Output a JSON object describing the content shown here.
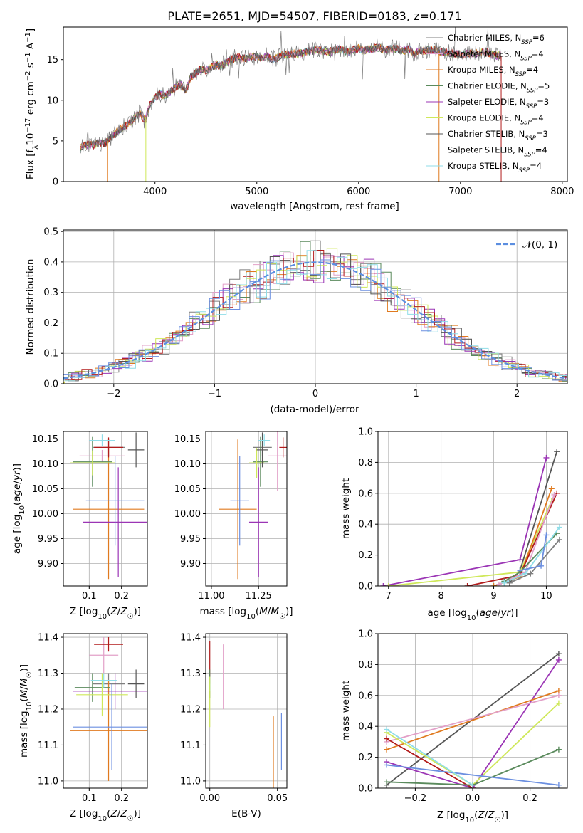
{
  "colors": {
    "Chabrier MILES": "#7f7f7f",
    "Salpeter MILES": "#e2a0c8",
    "Kroupa MILES": "#e07a1f",
    "Chabrier ELODIE": "#5a8a5c",
    "Salpeter ELODIE": "#9b35b5",
    "Kroupa ELODIE": "#cfe85a",
    "Chabrier STELIB": "#555555",
    "Salpeter STELIB": "#b21c1c",
    "Kroupa STELIB": "#8fdde8",
    "normal": "#5b8ee0",
    "blue_model": "#6b8fe0"
  },
  "chart_data": [
    {
      "type": "line",
      "title": "PLATE=2651, MJD=54507, FIBERID=0183, z=0.171",
      "xlabel": "wavelength [Angstrom, rest frame]",
      "ylabel": "Flux [f_λ10^-17 erg cm^-2 s^-1 A^-1]",
      "xlim": [
        3100,
        8050
      ],
      "ylim": [
        0,
        19
      ],
      "xticks": [
        "4000",
        "5000",
        "6000",
        "7000",
        "8000"
      ],
      "yticks": [
        "0",
        "5",
        "10",
        "15"
      ],
      "grid": false,
      "legend_position": "top-right",
      "series": [
        {
          "name": "Chabrier MILES",
          "nssp": "6"
        },
        {
          "name": "Salpeter MILES",
          "nssp": "4"
        },
        {
          "name": "Kroupa MILES",
          "nssp": "4"
        },
        {
          "name": "Chabrier ELODIE",
          "nssp": "5"
        },
        {
          "name": "Salpeter ELODIE",
          "nssp": "3"
        },
        {
          "name": "Kroupa ELODIE",
          "nssp": "4"
        },
        {
          "name": "Chabrier STELIB",
          "nssp": "3"
        },
        {
          "name": "Salpeter STELIB",
          "nssp": "4"
        },
        {
          "name": "Kroupa STELIB",
          "nssp": "4"
        }
      ],
      "spectrum_x": [
        3270,
        3300,
        3350,
        3400,
        3450,
        3500,
        3550,
        3600,
        3650,
        3700,
        3750,
        3800,
        3850,
        3900,
        3950,
        4000,
        4050,
        4100,
        4150,
        4200,
        4250,
        4300,
        4350,
        4400,
        4450,
        4500,
        4550,
        4600,
        4650,
        4700,
        4750,
        4800,
        4850,
        4900,
        4950,
        5000,
        5050,
        5100,
        5150,
        5200,
        5250,
        5300,
        5350,
        5400,
        5450,
        5500,
        5550,
        5600,
        5650,
        5700,
        5750,
        5800,
        5850,
        5900,
        5950,
        6000,
        6050,
        6100,
        6150,
        6200,
        6250,
        6300,
        6350,
        6400,
        6450,
        6500,
        6550,
        6600,
        6650,
        6700,
        6750,
        6800,
        6850,
        6900,
        6950,
        7000,
        7050,
        7100,
        7150,
        7200,
        7250,
        7300,
        7350,
        7400
      ],
      "spectrum_y": [
        4.2,
        4.4,
        4.6,
        4.5,
        4.8,
        4.6,
        5.2,
        5.8,
        6.3,
        6.8,
        7.2,
        7.8,
        8.4,
        7.5,
        9.5,
        10.3,
        10.8,
        10.6,
        11.0,
        11.6,
        12.0,
        11.2,
        12.8,
        13.4,
        13.8,
        13.6,
        14.0,
        14.4,
        14.2,
        14.6,
        15.0,
        15.3,
        15.2,
        15.1,
        15.4,
        15.3,
        15.2,
        15.5,
        15.0,
        15.2,
        15.6,
        15.6,
        15.8,
        15.7,
        15.8,
        16.0,
        16.1,
        16.2,
        16.1,
        16.0,
        16.0,
        16.3,
        16.1,
        15.9,
        16.2,
        16.4,
        16.1,
        16.3,
        16.4,
        16.5,
        16.2,
        16.3,
        16.4,
        16.2,
        16.1,
        16.3,
        15.6,
        16.2,
        16.0,
        16.3,
        16.2,
        16.0,
        15.9,
        15.8,
        15.7,
        15.6,
        15.7,
        15.8,
        15.7,
        15.9,
        16.0,
        15.6,
        15.5,
        15.5
      ]
    },
    {
      "type": "step",
      "xlabel": "(data-model)/error",
      "ylabel": "Normed distribution",
      "xlim": [
        -2.5,
        2.5
      ],
      "ylim": [
        0,
        0.505
      ],
      "xticks": [
        "−2",
        "−1",
        "0",
        "1",
        "2"
      ],
      "yticks": [
        "0.0",
        "0.1",
        "0.2",
        "0.3",
        "0.4",
        "0.5"
      ],
      "grid": true,
      "legend_position": "top-right",
      "normal_label": "𝒩(0, 1)",
      "bin_width": 0.1
    },
    {
      "type": "errorbar",
      "xlabel": "Z [log10(Z/Z☉)]",
      "ylabel": "age  [log10(age/yr)]",
      "xlim": [
        0.02,
        0.28
      ],
      "ylim": [
        9.855,
        10.165
      ],
      "xticks": [
        "0.1",
        "0.2"
      ],
      "yticks": [
        "9.90",
        "9.95",
        "10.00",
        "10.05",
        "10.10",
        "10.15"
      ],
      "grid": true,
      "points": [
        {
          "series": "Chabrier MILES",
          "x": 0.16,
          "y": 10.133,
          "xerr": 0.05,
          "yerr": 0.018
        },
        {
          "series": "Salpeter MILES",
          "x": 0.14,
          "y": 10.116,
          "xerr": 0.07,
          "yerr": 0.012
        },
        {
          "series": "Kroupa MILES",
          "x": 0.16,
          "y": 10.009,
          "xerr": 0.11,
          "yerr": 0.14
        },
        {
          "series": "Chabrier ELODIE",
          "x": 0.11,
          "y": 10.104,
          "xerr": 0.06,
          "yerr": 0.05
        },
        {
          "series": "Salpeter ELODIE",
          "x": 0.19,
          "y": 9.983,
          "xerr": 0.11,
          "yerr": 0.11
        },
        {
          "series": "Kroupa ELODIE",
          "x": 0.11,
          "y": 10.102,
          "xerr": 0.07,
          "yerr": 0.025
        },
        {
          "series": "Chabrier STELIB",
          "x": 0.245,
          "y": 10.128,
          "xerr": 0.025,
          "yerr": 0.035
        },
        {
          "series": "Salpeter STELIB",
          "x": 0.16,
          "y": 10.133,
          "xerr": 0.045,
          "yerr": 0.02
        },
        {
          "series": "Kroupa STELIB",
          "x": 0.14,
          "y": 10.147,
          "xerr": 0.04,
          "yerr": 0.012
        },
        {
          "series": "blue",
          "x": 0.18,
          "y": 10.026,
          "xerr": 0.09,
          "yerr": 0.09
        }
      ]
    },
    {
      "type": "errorbar",
      "xlabel": "mass [log10(M/M☉)]",
      "ylabel": "",
      "xlim": [
        10.97,
        11.4
      ],
      "ylim": [
        9.855,
        10.165
      ],
      "xticks": [
        "11.00",
        "11.25"
      ],
      "yticks": [
        "9.90",
        "9.95",
        "10.00",
        "10.05",
        "10.10",
        "10.15"
      ],
      "grid": true,
      "points": [
        {
          "series": "Chabrier MILES",
          "x": 11.27,
          "y": 10.133,
          "xerr": 0.05,
          "yerr": 0.018
        },
        {
          "series": "Salpeter MILES",
          "x": 11.35,
          "y": 10.116,
          "xerr": 0.05,
          "yerr": 0.07
        },
        {
          "series": "Kroupa MILES",
          "x": 11.14,
          "y": 10.009,
          "xerr": 0.1,
          "yerr": 0.14
        },
        {
          "series": "Chabrier ELODIE",
          "x": 11.26,
          "y": 10.104,
          "xerr": 0.04,
          "yerr": 0.05
        },
        {
          "series": "Salpeter ELODIE",
          "x": 11.25,
          "y": 9.983,
          "xerr": 0.05,
          "yerr": 0.11
        },
        {
          "series": "Kroupa ELODIE",
          "x": 11.24,
          "y": 10.102,
          "xerr": 0.04,
          "yerr": 0.03
        },
        {
          "series": "Chabrier STELIB",
          "x": 11.27,
          "y": 10.128,
          "xerr": 0.03,
          "yerr": 0.035
        },
        {
          "series": "Salpeter STELIB",
          "x": 11.38,
          "y": 10.133,
          "xerr": 0.02,
          "yerr": 0.02
        },
        {
          "series": "Kroupa STELIB",
          "x": 11.28,
          "y": 10.147,
          "xerr": 0.03,
          "yerr": 0.012
        },
        {
          "series": "blue",
          "x": 11.15,
          "y": 10.026,
          "xerr": 0.05,
          "yerr": 0.09
        }
      ]
    },
    {
      "type": "line",
      "xlabel": "age  [log10(age/yr)]",
      "ylabel": "mass weight",
      "xlim": [
        6.8,
        10.4
      ],
      "ylim": [
        0,
        1.0
      ],
      "xticks": [
        "7",
        "8",
        "9",
        "10"
      ],
      "yticks": [
        "0.0",
        "0.2",
        "0.4",
        "0.6",
        "0.8",
        "1.0"
      ],
      "grid": true,
      "series": [
        {
          "name": "Salpeter ELODIE",
          "x": [
            6.9,
            9.5,
            10.0
          ],
          "y": [
            0.0,
            0.17,
            0.83
          ]
        },
        {
          "name": "Chabrier STELIB",
          "x": [
            9.3,
            9.5,
            10.2
          ],
          "y": [
            0.02,
            0.1,
            0.87
          ]
        },
        {
          "name": "Kroupa ELODIE",
          "x": [
            7.0,
            9.5,
            10.1
          ],
          "y": [
            0.0,
            0.09,
            0.55
          ]
        },
        {
          "name": "Kroupa MILES",
          "x": [
            9.0,
            9.5,
            10.1
          ],
          "y": [
            0.0,
            0.06,
            0.63
          ]
        },
        {
          "name": "Salpeter STELIB",
          "x": [
            8.5,
            9.5,
            10.2
          ],
          "y": [
            0.0,
            0.07,
            0.6
          ]
        },
        {
          "name": "Salpeter MILES",
          "x": [
            9.1,
            9.6,
            10.15
          ],
          "y": [
            0.01,
            0.09,
            0.59
          ]
        },
        {
          "name": "Chabrier ELODIE",
          "x": [
            9.2,
            9.5,
            10.2
          ],
          "y": [
            0.03,
            0.09,
            0.34
          ]
        },
        {
          "name": "Kroupa STELIB",
          "x": [
            9.2,
            9.6,
            10.25
          ],
          "y": [
            0.02,
            0.08,
            0.38
          ]
        },
        {
          "name": "Chabrier MILES",
          "x": [
            9.3,
            9.7,
            10.25
          ],
          "y": [
            0.02,
            0.08,
            0.3
          ]
        },
        {
          "name": "blue",
          "x": [
            9.5,
            9.9,
            10.0
          ],
          "y": [
            0.1,
            0.13,
            0.33
          ]
        }
      ]
    },
    {
      "type": "errorbar",
      "xlabel": "Z [log10(Z/Z☉)]",
      "ylabel": "mass [log10(M/M☉)]",
      "xlim": [
        0.02,
        0.28
      ],
      "ylim": [
        10.98,
        11.41
      ],
      "xticks": [
        "0.1",
        "0.2"
      ],
      "yticks": [
        "11.0",
        "11.1",
        "11.2",
        "11.3",
        "11.4"
      ],
      "grid": true,
      "points": [
        {
          "series": "Chabrier MILES",
          "x": 0.16,
          "y": 11.27,
          "xerr": 0.05,
          "yerr": 0.03
        },
        {
          "series": "Salpeter MILES",
          "x": 0.145,
          "y": 11.35,
          "xerr": 0.045,
          "yerr": 0.05
        },
        {
          "series": "Kroupa MILES",
          "x": 0.16,
          "y": 11.14,
          "xerr": 0.12,
          "yerr": 0.14
        },
        {
          "series": "Chabrier ELODIE",
          "x": 0.11,
          "y": 11.26,
          "xerr": 0.055,
          "yerr": 0.04
        },
        {
          "series": "Salpeter ELODIE",
          "x": 0.18,
          "y": 11.25,
          "xerr": 0.13,
          "yerr": 0.05
        },
        {
          "series": "Kroupa ELODIE",
          "x": 0.14,
          "y": 11.24,
          "xerr": 0.08,
          "yerr": 0.06
        },
        {
          "series": "Chabrier STELIB",
          "x": 0.245,
          "y": 11.27,
          "xerr": 0.025,
          "yerr": 0.04
        },
        {
          "series": "Salpeter STELIB",
          "x": 0.16,
          "y": 11.38,
          "xerr": 0.045,
          "yerr": 0.02
        },
        {
          "series": "Kroupa STELIB",
          "x": 0.145,
          "y": 11.28,
          "xerr": 0.04,
          "yerr": 0.02
        },
        {
          "series": "blue",
          "x": 0.17,
          "y": 11.15,
          "xerr": 0.12,
          "yerr": 0.12
        }
      ]
    },
    {
      "type": "errorbar",
      "xlabel": "E(B-V)",
      "ylabel": "",
      "xlim": [
        -0.003,
        0.057
      ],
      "ylim": [
        10.98,
        11.41
      ],
      "xticks": [
        "0.00",
        "0.05"
      ],
      "yticks": [
        "11.0",
        "11.1",
        "11.2",
        "11.3",
        "11.4"
      ],
      "grid": true,
      "points": [
        {
          "series": "Salpeter STELIB",
          "x": 0.0,
          "y": 11.33,
          "yerr": 0.06
        },
        {
          "series": "Chabrier ELODIE",
          "x": 0.0,
          "y": 11.27,
          "yerr": 0.04
        },
        {
          "series": "Kroupa STELIB",
          "x": 0.0,
          "y": 11.27,
          "yerr": 0.02
        },
        {
          "series": "Kroupa ELODIE",
          "x": 0.0,
          "y": 11.22,
          "yerr": 0.07
        },
        {
          "series": "Salpeter MILES",
          "x": 0.01,
          "y": 11.29,
          "yerr": 0.09
        },
        {
          "series": "Kroupa MILES",
          "x": 0.047,
          "y": 11.06,
          "yerr": 0.12
        },
        {
          "series": "blue",
          "x": 0.053,
          "y": 11.11,
          "yerr": 0.08
        }
      ]
    },
    {
      "type": "line",
      "xlabel": "Z [log10(Z/Z☉)]",
      "ylabel": "mass weight",
      "xlim": [
        -0.33,
        0.33
      ],
      "ylim": [
        0,
        1.0
      ],
      "xticks": [
        "−0.2",
        "0.0",
        "0.2"
      ],
      "yticks": [
        "0.0",
        "0.2",
        "0.4",
        "0.6",
        "0.8",
        "1.0"
      ],
      "grid": true,
      "series": [
        {
          "name": "Chabrier STELIB",
          "x": [
            -0.3,
            0.3
          ],
          "y": [
            0.02,
            0.87
          ]
        },
        {
          "name": "Salpeter ELODIE",
          "x": [
            -0.3,
            0.0,
            0.3
          ],
          "y": [
            0.17,
            0.0,
            0.83
          ]
        },
        {
          "name": "Kroupa MILES",
          "x": [
            -0.3,
            0.3
          ],
          "y": [
            0.25,
            0.63
          ]
        },
        {
          "name": "Salpeter MILES",
          "x": [
            -0.3,
            0.3
          ],
          "y": [
            0.3,
            0.6
          ]
        },
        {
          "name": "Kroupa ELODIE",
          "x": [
            -0.3,
            0.0,
            0.3
          ],
          "y": [
            0.36,
            0.02,
            0.55
          ]
        },
        {
          "name": "Salpeter STELIB",
          "x": [
            -0.3,
            0.0
          ],
          "y": [
            0.32,
            0.0
          ]
        },
        {
          "name": "Chabrier ELODIE",
          "x": [
            -0.3,
            0.0,
            0.3
          ],
          "y": [
            0.04,
            0.02,
            0.25
          ]
        },
        {
          "name": "blue",
          "x": [
            -0.3,
            0.3
          ],
          "y": [
            0.15,
            0.02
          ]
        },
        {
          "name": "Kroupa STELIB",
          "x": [
            -0.3,
            0.0
          ],
          "y": [
            0.38,
            0.02
          ]
        }
      ]
    }
  ]
}
